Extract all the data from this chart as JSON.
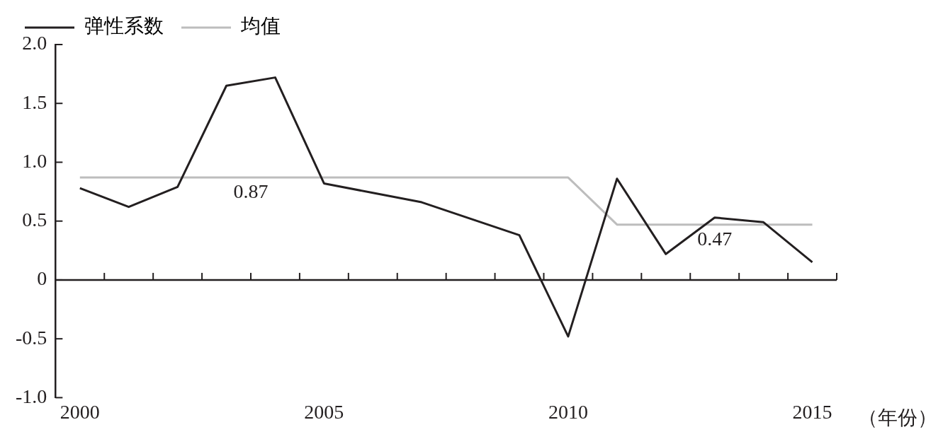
{
  "chart_data": {
    "type": "line",
    "xlabel": "（年份）",
    "categories": [
      "2000",
      null,
      null,
      null,
      null,
      "2005",
      null,
      null,
      null,
      null,
      "2010",
      null,
      null,
      null,
      null,
      "2015"
    ],
    "series": [
      {
        "name": "弹性系数",
        "color": "#231f20",
        "values": [
          0.78,
          0.62,
          0.79,
          1.65,
          1.72,
          0.82,
          0.74,
          0.66,
          0.52,
          0.38,
          -0.48,
          0.86,
          0.22,
          0.53,
          0.49,
          0.15
        ]
      },
      {
        "name": "均值",
        "color": "#bdbdbd",
        "values": [
          0.87,
          0.87,
          0.87,
          0.87,
          0.87,
          0.87,
          0.87,
          0.87,
          0.87,
          0.87,
          0.87,
          0.47,
          0.47,
          0.47,
          0.47,
          0.47
        ]
      }
    ],
    "annotations": [
      {
        "text": "0.87",
        "y": 0.87
      },
      {
        "text": "0.47",
        "y": 0.47
      }
    ],
    "ylim": [
      -1.0,
      2.0
    ],
    "yticks": [
      {
        "value": -1,
        "label": "-1.0"
      },
      {
        "value": -0.5,
        "label": "-0.5"
      },
      0,
      {
        "value": 0.5,
        "label": "0.5"
      },
      {
        "value": 1,
        "label": "1.0"
      },
      {
        "value": 1.5,
        "label": "1.5"
      },
      {
        "value": 2,
        "label": "2.0"
      }
    ],
    "ref_lines": [
      {
        "axis": "y",
        "value": 0,
        "color": "#231f20",
        "line_style": "solid"
      }
    ],
    "grid": false,
    "legend": "top left",
    "marker": "none",
    "line_style": "solid"
  }
}
